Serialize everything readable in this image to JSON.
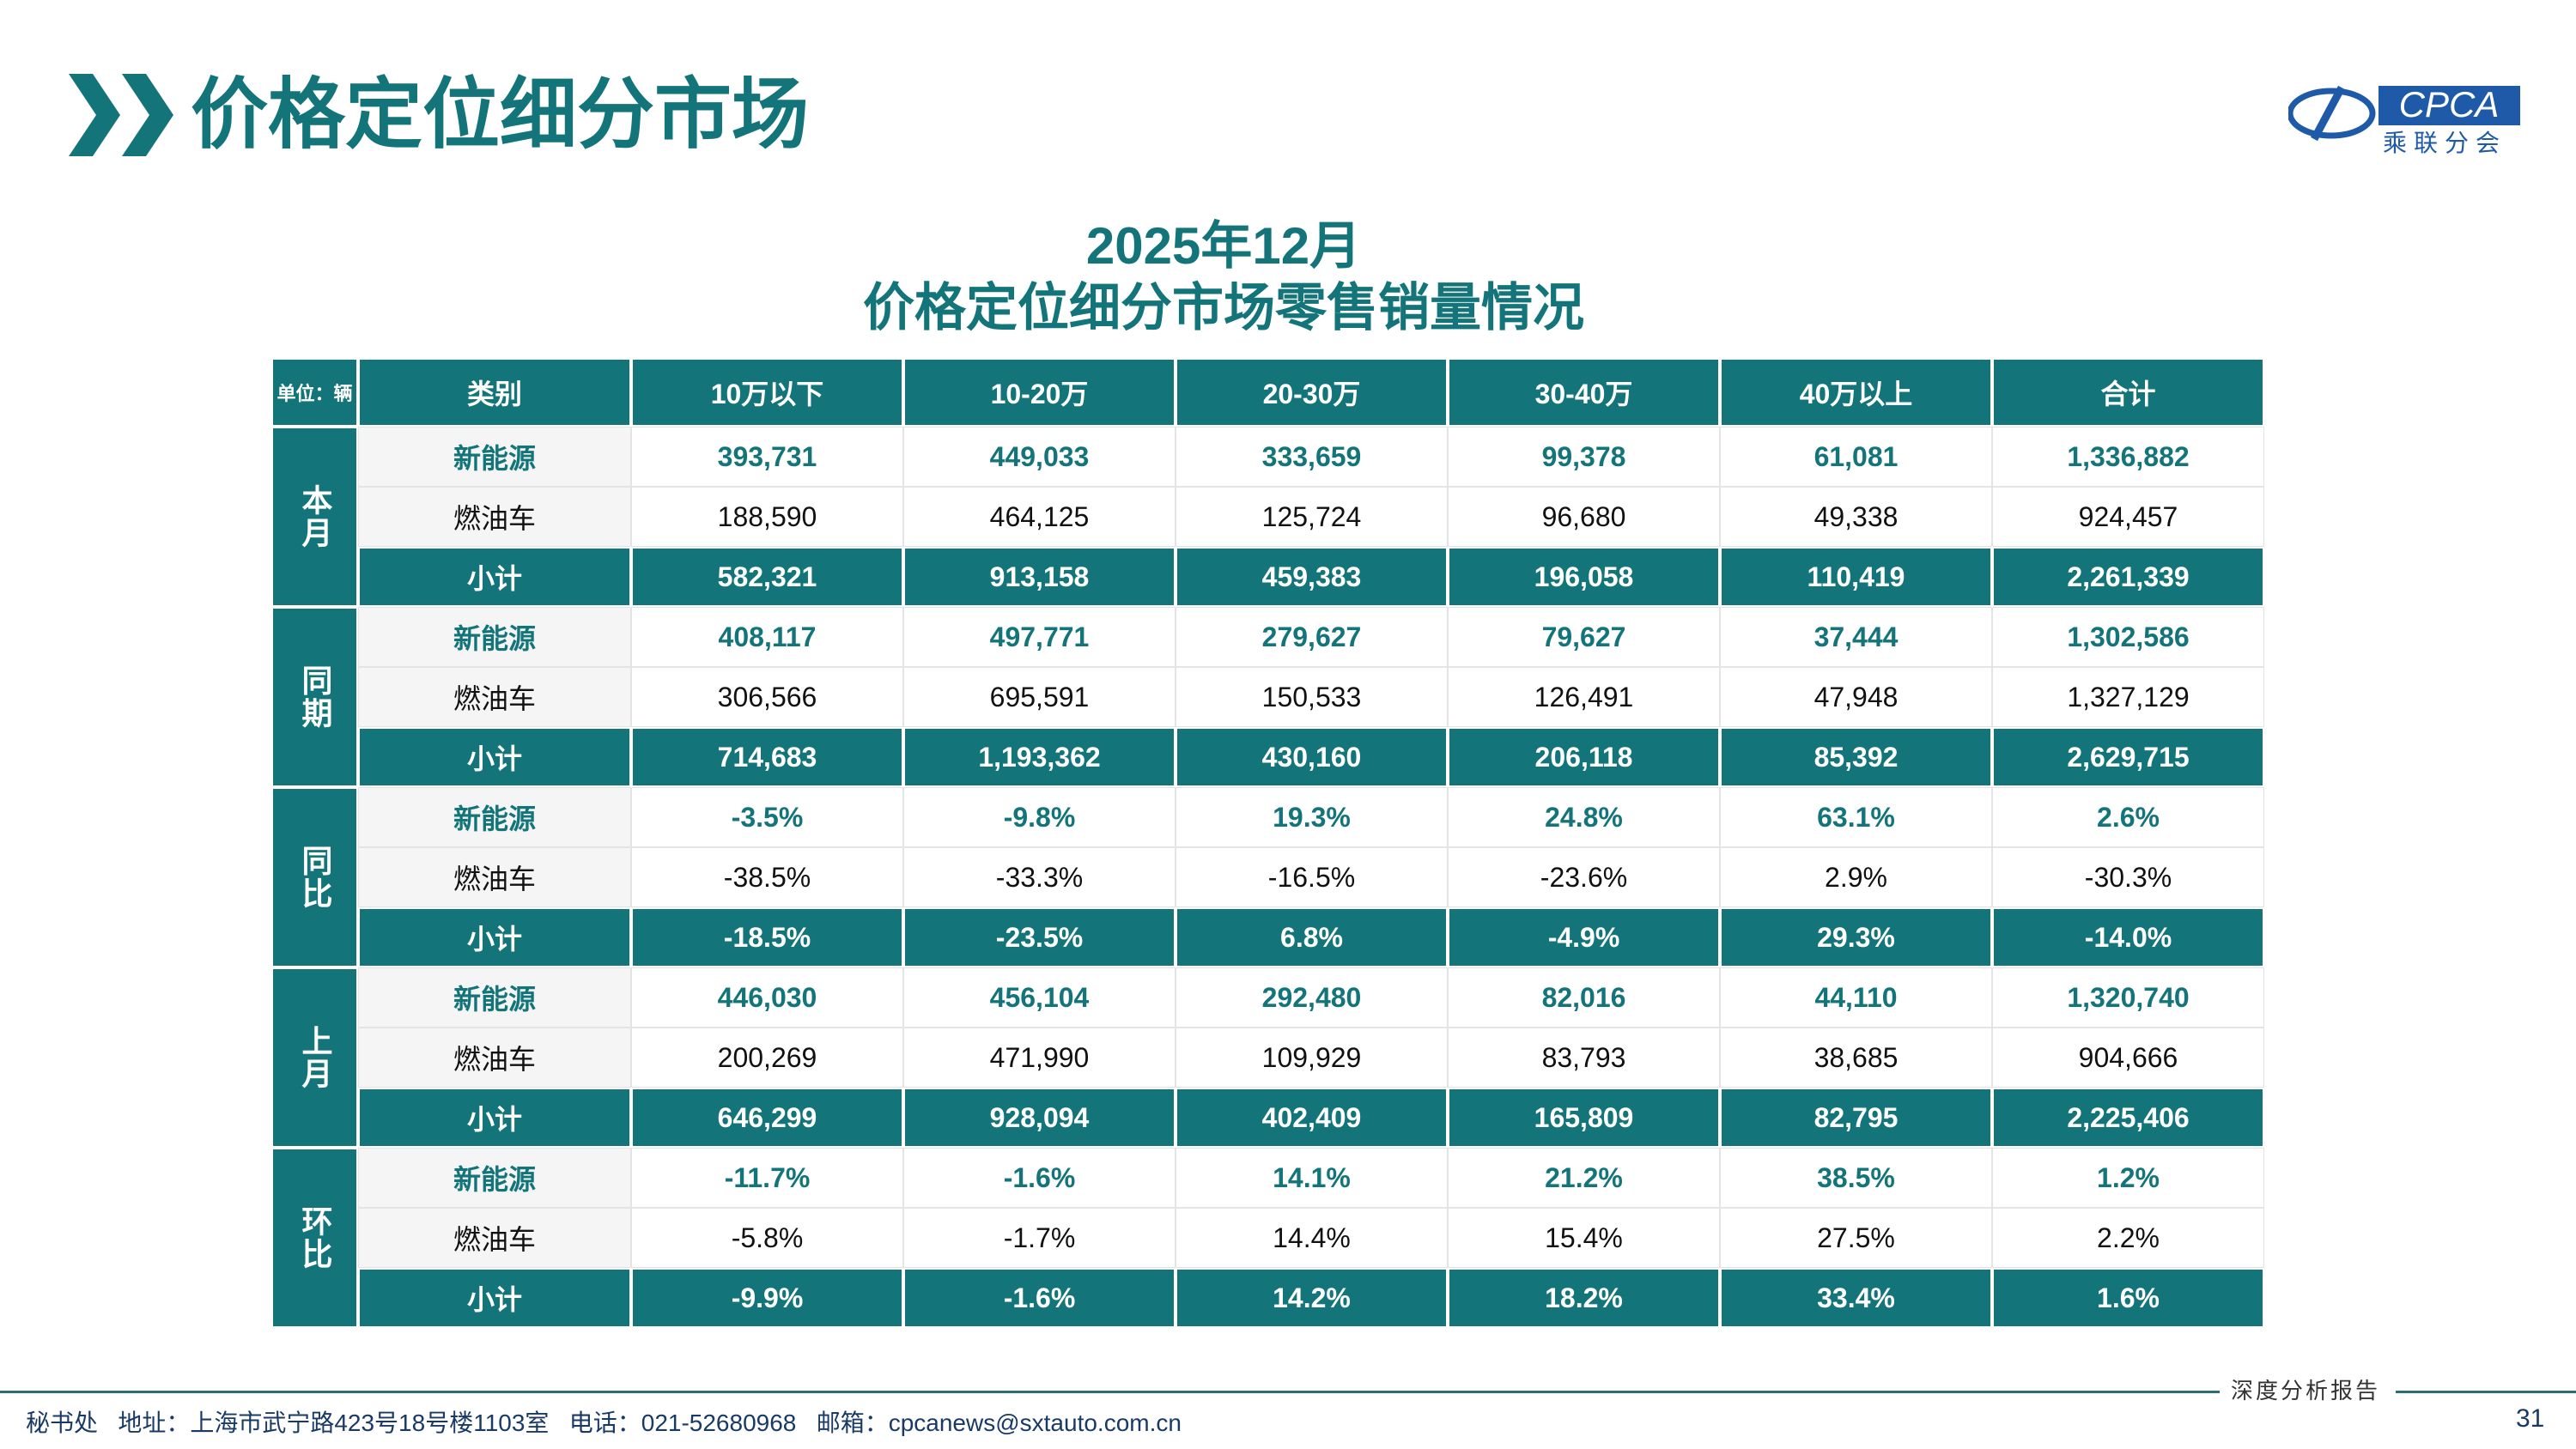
{
  "header": {
    "title": "价格定位细分市场",
    "logo": {
      "text": "CPCA",
      "subtext": "乘联分会"
    }
  },
  "table": {
    "title": "2025年12月",
    "subtitle": "价格定位细分市场零售销量情况",
    "unit": "单位：辆",
    "columns": [
      "类别",
      "10万以下",
      "10-20万",
      "20-30万",
      "30-40万",
      "40万以上",
      "合计"
    ],
    "groups": [
      {
        "label": "本月",
        "rows": [
          {
            "type": "新能源",
            "values": [
              "393,731",
              "449,033",
              "333,659",
              "99,378",
              "61,081",
              "1,336,882"
            ]
          },
          {
            "type": "燃油车",
            "values": [
              "188,590",
              "464,125",
              "125,724",
              "96,680",
              "49,338",
              "924,457"
            ]
          },
          {
            "type": "小计",
            "values": [
              "582,321",
              "913,158",
              "459,383",
              "196,058",
              "110,419",
              "2,261,339"
            ]
          }
        ]
      },
      {
        "label": "同期",
        "rows": [
          {
            "type": "新能源",
            "values": [
              "408,117",
              "497,771",
              "279,627",
              "79,627",
              "37,444",
              "1,302,586"
            ]
          },
          {
            "type": "燃油车",
            "values": [
              "306,566",
              "695,591",
              "150,533",
              "126,491",
              "47,948",
              "1,327,129"
            ]
          },
          {
            "type": "小计",
            "values": [
              "714,683",
              "1,193,362",
              "430,160",
              "206,118",
              "85,392",
              "2,629,715"
            ]
          }
        ]
      },
      {
        "label": "同比",
        "rows": [
          {
            "type": "新能源",
            "values": [
              "-3.5%",
              "-9.8%",
              "19.3%",
              "24.8%",
              "63.1%",
              "2.6%"
            ]
          },
          {
            "type": "燃油车",
            "values": [
              "-38.5%",
              "-33.3%",
              "-16.5%",
              "-23.6%",
              "2.9%",
              "-30.3%"
            ]
          },
          {
            "type": "小计",
            "values": [
              "-18.5%",
              "-23.5%",
              "6.8%",
              "-4.9%",
              "29.3%",
              "-14.0%"
            ]
          }
        ]
      },
      {
        "label": "上月",
        "rows": [
          {
            "type": "新能源",
            "values": [
              "446,030",
              "456,104",
              "292,480",
              "82,016",
              "44,110",
              "1,320,740"
            ]
          },
          {
            "type": "燃油车",
            "values": [
              "200,269",
              "471,990",
              "109,929",
              "83,793",
              "38,685",
              "904,666"
            ]
          },
          {
            "type": "小计",
            "values": [
              "646,299",
              "928,094",
              "402,409",
              "165,809",
              "82,795",
              "2,225,406"
            ]
          }
        ]
      },
      {
        "label": "环比",
        "rows": [
          {
            "type": "新能源",
            "values": [
              "-11.7%",
              "-1.6%",
              "14.1%",
              "21.2%",
              "38.5%",
              "1.2%"
            ]
          },
          {
            "type": "燃油车",
            "values": [
              "-5.8%",
              "-1.7%",
              "14.4%",
              "15.4%",
              "27.5%",
              "2.2%"
            ]
          },
          {
            "type": "小计",
            "values": [
              "-9.9%",
              "-1.6%",
              "14.2%",
              "18.2%",
              "33.4%",
              "1.6%"
            ]
          }
        ]
      }
    ]
  },
  "footer": {
    "contact": "秘书处   地址：上海市武宁路423号18号楼1103室   电话：021-52680968   邮箱：cpcanews@sxtauto.com.cn",
    "report": "深度分析报告",
    "page": "31"
  }
}
